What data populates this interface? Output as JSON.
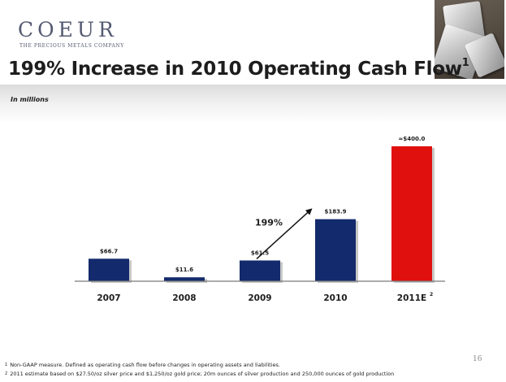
{
  "header": {
    "logo": "COEUR",
    "tagline": "THE PRECIOUS METALS COMPANY",
    "title": "199% Increase in 2010 Operating Cash Flow",
    "title_note": "1",
    "subtitle": "In millions"
  },
  "chart_data": {
    "type": "bar",
    "title": "199% Increase in 2010 Operating Cash Flow",
    "xlabel": "",
    "ylabel": "In millions",
    "ylim": [
      0,
      400
    ],
    "categories": [
      "2007",
      "2008",
      "2009",
      "2010",
      "2011E"
    ],
    "category_notes": [
      "",
      "",
      "",
      "",
      "2"
    ],
    "values": [
      66.7,
      11.6,
      61.5,
      183.9,
      400.0
    ],
    "value_labels": [
      "$66.7",
      "$11.6",
      "$61.5",
      "$183.9",
      "≈$400.0"
    ],
    "colors": [
      "#132a6c",
      "#132a6c",
      "#132a6c",
      "#132a6c",
      "#e0100e"
    ],
    "grid": false,
    "annotation": {
      "text": "199%",
      "from_category": "2009",
      "to_category": "2010"
    }
  },
  "footnotes": [
    {
      "marker": "1",
      "text": "Non-GAAP measure.  Defined as operating cash flow before changes in operating assets and liabilities."
    },
    {
      "marker": "2",
      "text": "2011 estimate based on $27.50/oz silver price and $1,250/oz gold price; 20m ounces of silver production and 250,000 ounces of gold production"
    }
  ],
  "page_number": "16",
  "colors": {
    "bar_primary": "#132a6c",
    "bar_estimate": "#e0100e",
    "text": "#1d1d1d",
    "logo": "#555a72"
  }
}
